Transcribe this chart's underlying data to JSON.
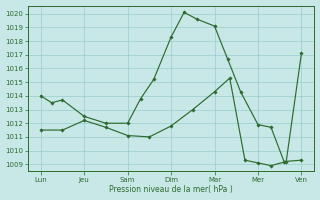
{
  "background_color": "#c8e8e8",
  "grid_color": "#99cccc",
  "line_color": "#2d6a2d",
  "xlabel": "Pression niveau de la mer( hPa )",
  "xtick_labels": [
    "Lun",
    "Jeu",
    "Sam",
    "Dim",
    "Mar",
    "Mer",
    "Ven"
  ],
  "xtick_positions": [
    0,
    1,
    2,
    3,
    4,
    5,
    6
  ],
  "ylim": [
    1008.5,
    1020.6
  ],
  "yticks": [
    1009,
    1010,
    1011,
    1012,
    1013,
    1014,
    1015,
    1016,
    1017,
    1018,
    1019,
    1020
  ],
  "line1_x": [
    0,
    0.25,
    0.5,
    1.0,
    1.5,
    2.0,
    2.3,
    2.6,
    3.0,
    3.3,
    3.6,
    4.0,
    4.3,
    4.6,
    5.0,
    5.3,
    5.6,
    6.0
  ],
  "line1_y": [
    1014.0,
    1013.5,
    1013.7,
    1012.5,
    1012.0,
    1012.0,
    1013.8,
    1015.2,
    1018.3,
    1020.1,
    1019.6,
    1019.1,
    1016.7,
    1014.3,
    1011.9,
    1011.7,
    1009.2,
    1009.3
  ],
  "line2_x": [
    0,
    0.5,
    1.0,
    1.5,
    2.0,
    2.5,
    3.0,
    3.5,
    4.0,
    4.35,
    4.7,
    5.0,
    5.3,
    5.65,
    6.0
  ],
  "line2_y": [
    1011.5,
    1011.5,
    1012.2,
    1011.7,
    1011.1,
    1011.0,
    1011.8,
    1013.0,
    1014.3,
    1015.3,
    1009.3,
    1009.1,
    1008.9,
    1009.2,
    1017.1
  ]
}
